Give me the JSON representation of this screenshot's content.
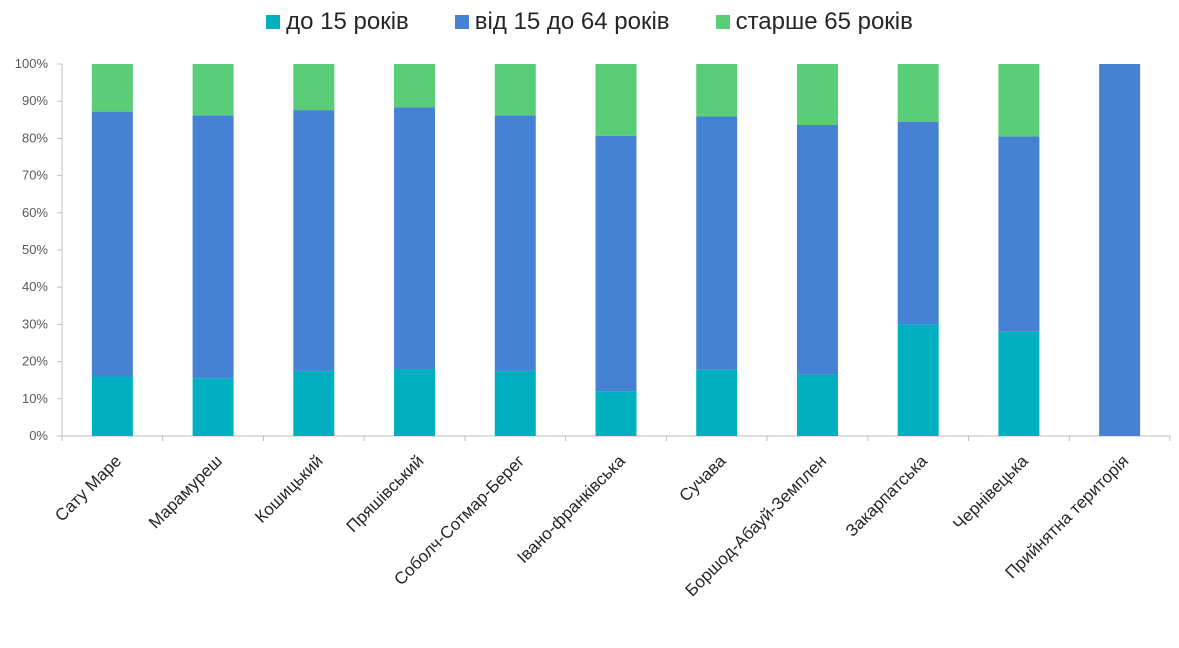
{
  "chart_data": {
    "type": "bar",
    "stacked": true,
    "percent_stacked": true,
    "categories": [
      "Сату Маре",
      "Марамуреш",
      "Кошицький",
      "Пряшівський",
      "Соболч-Сотмар-Берег",
      "Івано-франківська",
      "Сучава",
      "Боршод-Абауй-Земплен",
      "Закарпатська",
      "Чернівецька",
      "Прийнятна територія"
    ],
    "series": [
      {
        "name": "до 15 років",
        "color": "#00b0c0",
        "values": [
          16,
          15.5,
          17.5,
          18,
          17.5,
          12,
          17.8,
          16.5,
          30,
          28,
          0
        ]
      },
      {
        "name": "від 15 до 64 років",
        "color": "#4682d4",
        "values": [
          71.2,
          70.7,
          70.1,
          70.3,
          68.7,
          68.7,
          68.1,
          67.1,
          54.5,
          52.5,
          100
        ]
      },
      {
        "name": "старше 65 років",
        "color": "#5acd78",
        "values": [
          12.8,
          13.8,
          12.4,
          11.7,
          13.8,
          19.3,
          14.1,
          16.4,
          15.5,
          19.5,
          0
        ]
      }
    ],
    "yticks": [
      "0%",
      "10%",
      "20%",
      "30%",
      "40%",
      "50%",
      "60%",
      "70%",
      "80%",
      "90%",
      "100%"
    ],
    "ylim": [
      0,
      100
    ],
    "legend": "top",
    "grid": false
  }
}
